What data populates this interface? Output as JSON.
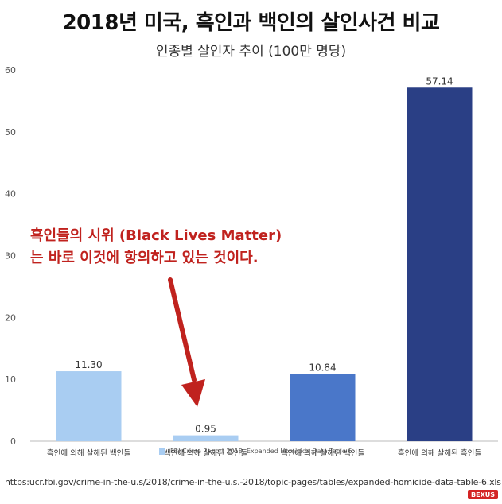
{
  "title": "2018년 미국, 흑인과 백인의 살인사건 비교",
  "subtitle": "인종별 살인자 추이 (100만 명당)",
  "annotation": {
    "line1": "흑인들의 시위 (Black Lives Matter)",
    "line2": "는 바로 이것에 항의하고 있는 것이다."
  },
  "legend_label": "FBI Crime Report 2018, Expanded Homicide Data Table 6",
  "source_url": "https:ucr.fbi.gov/crime-in-the-u.s/2018/crime-in-the-u.s.-2018/topic-pages/tables/expanded-homicide-data-table-6.xls",
  "watermark": "BEXUS",
  "colors": {
    "light_blue": "#a9cdf2",
    "mid_blue": "#4a77c9",
    "dark_blue": "#2a3f85",
    "annotation_red": "#c0221e"
  },
  "chart_data": {
    "type": "bar",
    "title": "2018년 미국, 흑인과 백인의 살인사건 비교",
    "subtitle": "인종별 살인자 추이 (100만 명당)",
    "categories": [
      "흑인에 의해 살해된 백인들",
      "백인에 의해 살해된 흑인들",
      "백인에 의해 살해된 백인들",
      "흑인에 의해 살해된 흑인들"
    ],
    "values": [
      11.3,
      0.95,
      10.84,
      57.14
    ],
    "value_labels": [
      "11.30",
      "0.95",
      "10.84",
      "57.14"
    ],
    "bar_colors": [
      "#a9cdf2",
      "#a9cdf2",
      "#4a77c9",
      "#2a3f85"
    ],
    "ylim": [
      0,
      60
    ],
    "yticks": [
      0,
      10,
      20,
      30,
      40,
      50,
      60
    ],
    "xlabel": "",
    "ylabel": "",
    "grid": false,
    "legend": "bottom-center"
  }
}
